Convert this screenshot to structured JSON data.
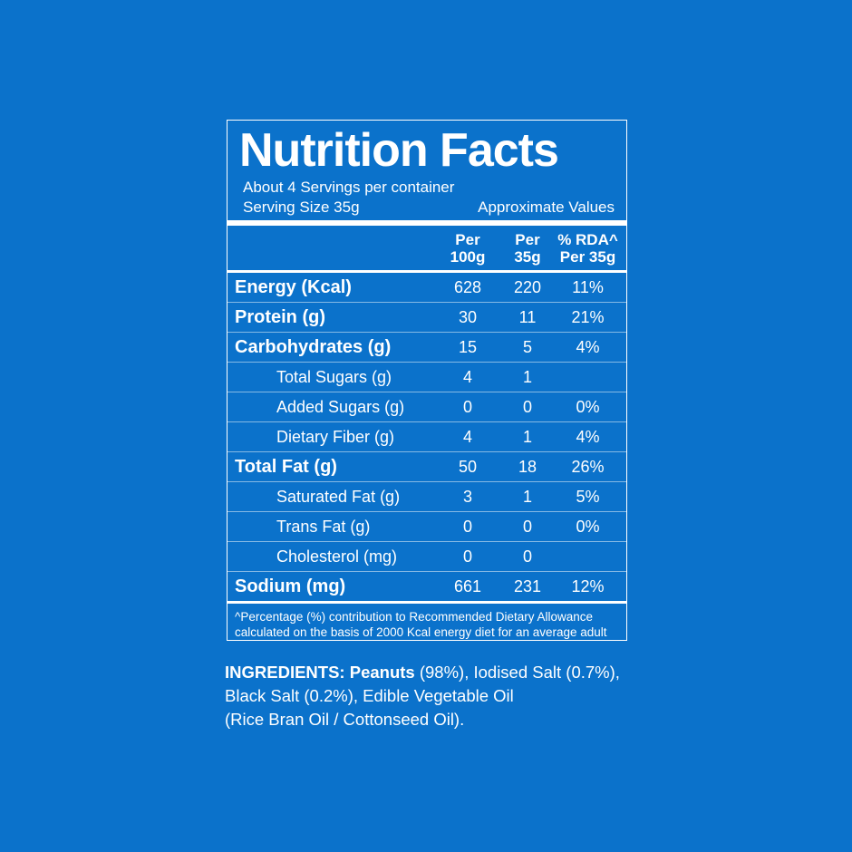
{
  "colors": {
    "background": "#0B72CB",
    "foreground": "#FFFFFF",
    "divider": "rgba(255,255,255,0.5)"
  },
  "label": {
    "title": "Nutrition Facts",
    "servings_per_container": "About 4 Servings per container",
    "serving_size": "Serving Size 35g",
    "approximate_values": "Approximate Values",
    "columns": [
      {
        "line1": "Per",
        "line2": "100g"
      },
      {
        "line1": "Per",
        "line2": "35g"
      },
      {
        "line1": "% RDA^",
        "line2": "Per 35g"
      }
    ],
    "rows": [
      {
        "name": "Energy (Kcal)",
        "per_100g": "628",
        "per_35g": "220",
        "rda": "11%"
      },
      {
        "name": "Protein (g)",
        "per_100g": "30",
        "per_35g": "11",
        "rda": "21%"
      },
      {
        "name": "Carbohydrates (g)",
        "per_100g": "15",
        "per_35g": "5",
        "rda": "4%"
      },
      {
        "name": "Total Sugars (g)",
        "per_100g": "4",
        "per_35g": "1",
        "rda": ""
      },
      {
        "name": "Added Sugars (g)",
        "per_100g": "0",
        "per_35g": "0",
        "rda": "0%"
      },
      {
        "name": "Dietary Fiber (g)",
        "per_100g": "4",
        "per_35g": "1",
        "rda": "4%"
      },
      {
        "name": "Total Fat (g)",
        "per_100g": "50",
        "per_35g": "18",
        "rda": "26%"
      },
      {
        "name": "Saturated Fat (g)",
        "per_100g": "3",
        "per_35g": "1",
        "rda": "5%"
      },
      {
        "name": "Trans Fat (g)",
        "per_100g": "0",
        "per_35g": "0",
        "rda": "0%"
      },
      {
        "name": "Cholesterol (mg)",
        "per_100g": "0",
        "per_35g": "0",
        "rda": ""
      },
      {
        "name": "Sodium (mg)",
        "per_100g": "661",
        "per_35g": "231",
        "rda": "12%"
      }
    ],
    "footnote_line1": "^Percentage (%) contribution to Recommended Dietary Allowance",
    "footnote_line2": "calculated on the basis of 2000 Kcal energy diet for an average adult"
  },
  "ingredients": {
    "heading": "INGREDIENTS:",
    "line1_bold": "Peanuts",
    "line1_rest": " (98%), Iodised Salt (0.7%),",
    "line2": "Black Salt (0.2%), Edible Vegetable Oil",
    "line3": "(Rice Bran Oil / Cottonseed Oil)."
  }
}
